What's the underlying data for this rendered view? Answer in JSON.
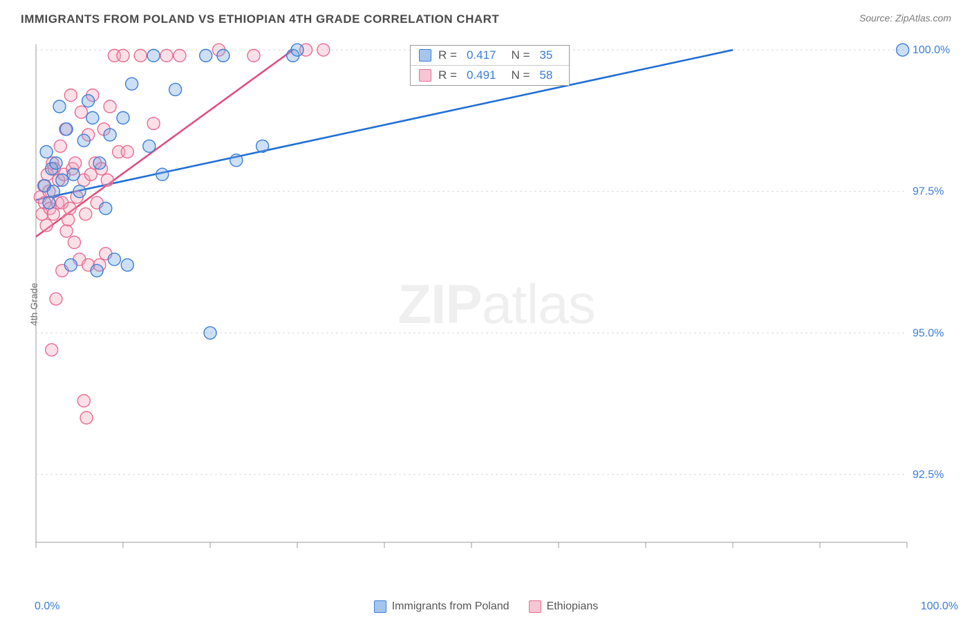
{
  "header": {
    "title": "IMMIGRANTS FROM POLAND VS ETHIOPIAN 4TH GRADE CORRELATION CHART",
    "source": "Source: ZipAtlas.com"
  },
  "chart": {
    "type": "scatter",
    "y_axis_label": "4th Grade",
    "xlim": [
      0,
      100
    ],
    "ylim": [
      91.3,
      100.1
    ],
    "x_origin_label": "0.0%",
    "x_max_label": "100.0%",
    "x_ticks": [
      0,
      10,
      20,
      30,
      40,
      50,
      60,
      70,
      80,
      90,
      100
    ],
    "y_ticks": [
      {
        "val": 92.5,
        "label": "92.5%"
      },
      {
        "val": 95.0,
        "label": "95.0%"
      },
      {
        "val": 97.5,
        "label": "97.5%"
      },
      {
        "val": 100.0,
        "label": "100.0%"
      }
    ],
    "background_color": "#ffffff",
    "grid_color": "#d8d8d8",
    "axis_color": "#9a9a9a",
    "tick_label_color": "#3b7dd8",
    "marker_radius": 9,
    "marker_stroke_width": 1.4,
    "marker_fill_opacity": 0.35,
    "trend_line_width": 2.6,
    "watermark": "ZIPatlas"
  },
  "series": [
    {
      "name": "Immigrants from Poland",
      "color": "#6fa3e0",
      "stroke": "#3b7dd8",
      "line_color": "#1f6fd6",
      "R": "0.417",
      "N": "35",
      "trend": {
        "x1": 0,
        "y1": 97.35,
        "x2": 80,
        "y2": 100.0
      },
      "points": [
        [
          1.0,
          97.6
        ],
        [
          1.2,
          98.2
        ],
        [
          1.5,
          97.3
        ],
        [
          1.8,
          97.9
        ],
        [
          2.0,
          97.5
        ],
        [
          2.3,
          98.0
        ],
        [
          2.7,
          99.0
        ],
        [
          3.0,
          97.7
        ],
        [
          3.5,
          98.6
        ],
        [
          4.0,
          96.2
        ],
        [
          4.3,
          97.8
        ],
        [
          5.0,
          97.5
        ],
        [
          5.5,
          98.4
        ],
        [
          6.0,
          99.1
        ],
        [
          6.5,
          98.8
        ],
        [
          7.0,
          96.1
        ],
        [
          7.3,
          98.0
        ],
        [
          8.0,
          97.2
        ],
        [
          8.5,
          98.5
        ],
        [
          9.0,
          96.3
        ],
        [
          10.0,
          98.8
        ],
        [
          10.5,
          96.2
        ],
        [
          11.0,
          99.4
        ],
        [
          13.0,
          98.3
        ],
        [
          13.5,
          99.9
        ],
        [
          14.5,
          97.8
        ],
        [
          16.0,
          99.3
        ],
        [
          19.5,
          99.9
        ],
        [
          20.0,
          95.0
        ],
        [
          21.5,
          99.9
        ],
        [
          23.0,
          98.05
        ],
        [
          26.0,
          98.3
        ],
        [
          29.5,
          99.9
        ],
        [
          30.0,
          100.0
        ],
        [
          99.5,
          100.0
        ]
      ]
    },
    {
      "name": "Ethiopians",
      "color": "#f4a6bd",
      "stroke": "#e86a92",
      "line_color": "#e04e7f",
      "R": "0.491",
      "N": "58",
      "trend": {
        "x1": 0,
        "y1": 96.7,
        "x2": 29.5,
        "y2": 100.0
      },
      "points": [
        [
          0.5,
          97.4
        ],
        [
          0.7,
          97.1
        ],
        [
          0.9,
          97.6
        ],
        [
          1.0,
          97.3
        ],
        [
          1.2,
          96.9
        ],
        [
          1.3,
          97.8
        ],
        [
          1.5,
          97.5
        ],
        [
          1.6,
          97.2
        ],
        [
          1.8,
          94.7
        ],
        [
          1.9,
          98.0
        ],
        [
          2.0,
          97.1
        ],
        [
          2.1,
          97.9
        ],
        [
          2.3,
          95.6
        ],
        [
          2.5,
          97.3
        ],
        [
          2.6,
          97.7
        ],
        [
          2.8,
          98.3
        ],
        [
          3.0,
          96.1
        ],
        [
          3.0,
          97.3
        ],
        [
          3.2,
          97.8
        ],
        [
          3.4,
          98.6
        ],
        [
          3.5,
          96.8
        ],
        [
          3.7,
          97.0
        ],
        [
          3.9,
          97.2
        ],
        [
          4.0,
          99.2
        ],
        [
          4.2,
          97.9
        ],
        [
          4.4,
          96.6
        ],
        [
          4.5,
          98.0
        ],
        [
          4.7,
          97.4
        ],
        [
          5.0,
          96.3
        ],
        [
          5.2,
          98.9
        ],
        [
          5.5,
          97.7
        ],
        [
          5.5,
          93.8
        ],
        [
          5.7,
          97.1
        ],
        [
          5.8,
          93.5
        ],
        [
          6.0,
          98.5
        ],
        [
          6.0,
          96.2
        ],
        [
          6.3,
          97.8
        ],
        [
          6.5,
          99.2
        ],
        [
          6.8,
          98.0
        ],
        [
          7.0,
          97.3
        ],
        [
          7.3,
          96.2
        ],
        [
          7.5,
          97.9
        ],
        [
          7.8,
          98.6
        ],
        [
          8.0,
          96.4
        ],
        [
          8.2,
          97.7
        ],
        [
          8.5,
          99.0
        ],
        [
          9.0,
          99.9
        ],
        [
          9.5,
          98.2
        ],
        [
          10.0,
          99.9
        ],
        [
          10.5,
          98.2
        ],
        [
          12.0,
          99.9
        ],
        [
          13.5,
          98.7
        ],
        [
          15.0,
          99.9
        ],
        [
          16.5,
          99.9
        ],
        [
          21.0,
          100.0
        ],
        [
          25.0,
          99.9
        ],
        [
          31.0,
          100.0
        ],
        [
          33.0,
          100.0
        ]
      ]
    }
  ],
  "correlation_box": {
    "rows": [
      {
        "swatch_fill": "#a6c5ed",
        "swatch_stroke": "#3b7dd8",
        "R_label": "R =",
        "R": "0.417",
        "N_label": "N =",
        "N": "35"
      },
      {
        "swatch_fill": "#f7c6d4",
        "swatch_stroke": "#e86a92",
        "R_label": "R =",
        "R": "0.491",
        "N_label": "N =",
        "N": "58"
      }
    ]
  },
  "bottom_legend": [
    {
      "swatch_fill": "#a6c5ed",
      "swatch_stroke": "#3b7dd8",
      "label": "Immigrants from Poland"
    },
    {
      "swatch_fill": "#f7c6d4",
      "swatch_stroke": "#e86a92",
      "label": "Ethiopians"
    }
  ]
}
